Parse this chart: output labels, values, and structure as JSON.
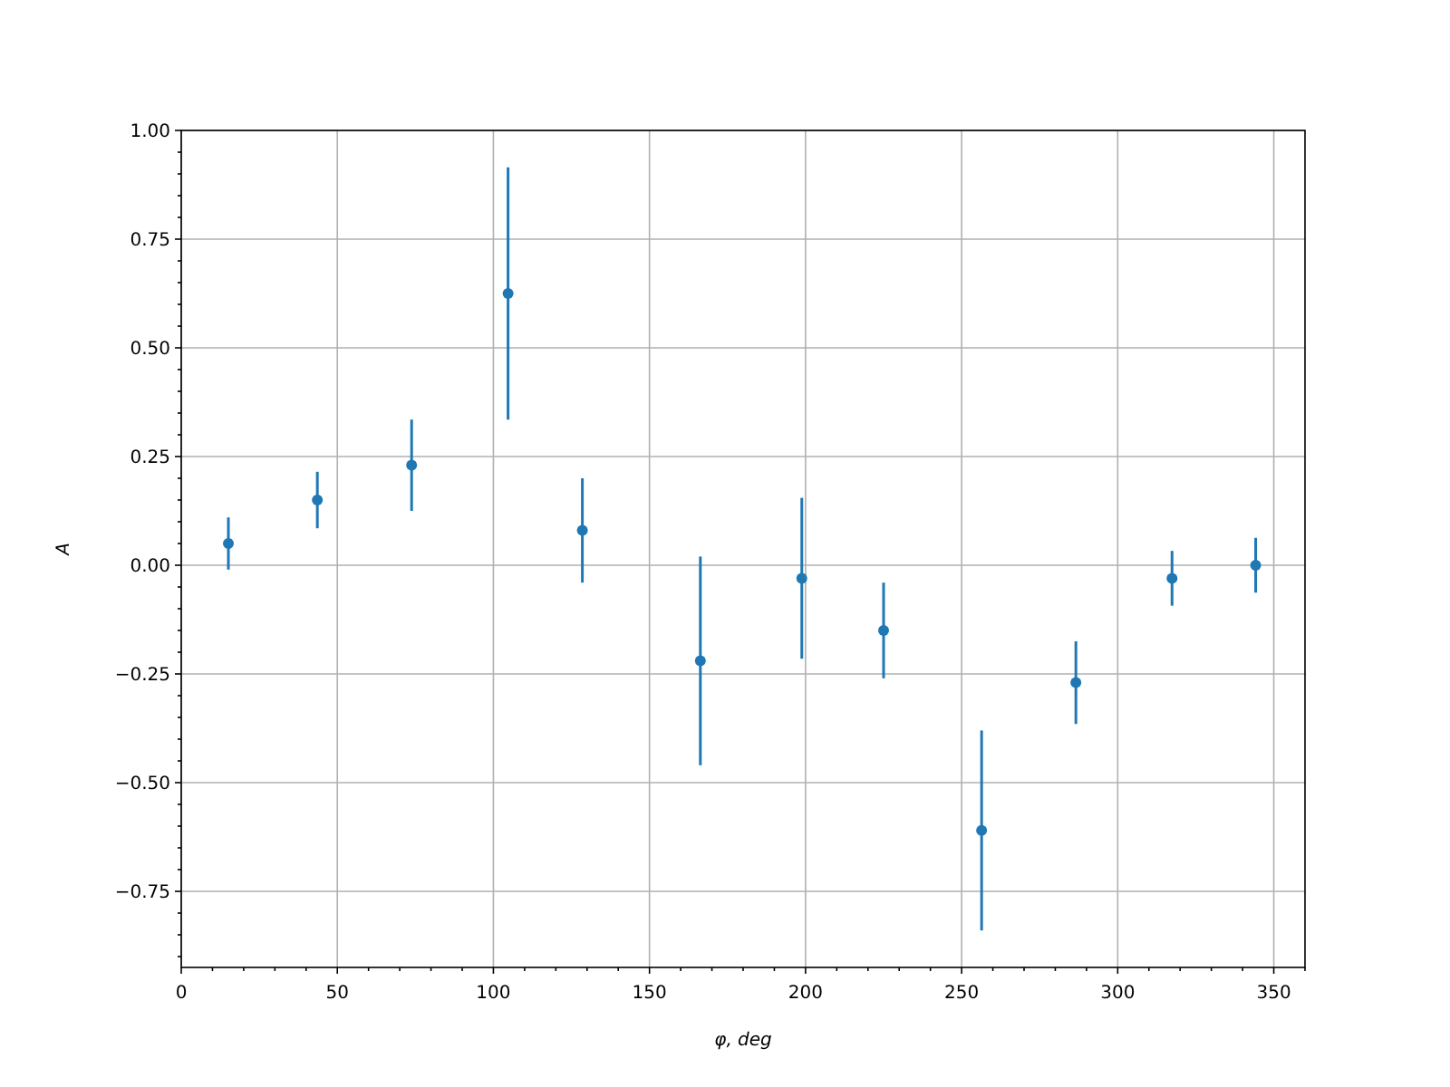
{
  "chart_data": {
    "type": "scatter",
    "xlabel": "φ, deg",
    "ylabel": "A",
    "x": [
      15.1,
      43.6,
      73.8,
      104.7,
      128.5,
      166.3,
      198.8,
      225,
      256.4,
      286.6,
      317.4,
      344.2
    ],
    "series": [
      {
        "color": "#1f77b4",
        "values": [
          0.05,
          0.15,
          0.23,
          0.625,
          0.08,
          -0.22,
          -0.03,
          -0.15,
          -0.61,
          -0.27,
          -0.03,
          0.0
        ],
        "errors": [
          0.06,
          0.065,
          0.105,
          0.29,
          0.12,
          0.24,
          0.185,
          0.11,
          0.23,
          0.095,
          0.063,
          0.063
        ]
      }
    ],
    "marker": "circle",
    "xlim": [
      0,
      360
    ],
    "ylim": [
      -0.925,
      1.0
    ],
    "xticks": [
      0,
      {
        "value": 10,
        "label": null
      },
      {
        "value": 20,
        "label": null
      },
      {
        "value": 30,
        "label": null
      },
      {
        "value": 40,
        "label": null
      },
      50,
      {
        "value": 60,
        "label": null
      },
      {
        "value": 70,
        "label": null
      },
      {
        "value": 80,
        "label": null
      },
      {
        "value": 90,
        "label": null
      },
      100,
      {
        "value": 110,
        "label": null
      },
      {
        "value": 120,
        "label": null
      },
      {
        "value": 130,
        "label": null
      },
      {
        "value": 140,
        "label": null
      },
      150,
      {
        "value": 160,
        "label": null
      },
      {
        "value": 170,
        "label": null
      },
      {
        "value": 180,
        "label": null
      },
      {
        "value": 190,
        "label": null
      },
      200,
      {
        "value": 210,
        "label": null
      },
      {
        "value": 220,
        "label": null
      },
      {
        "value": 230,
        "label": null
      },
      {
        "value": 240,
        "label": null
      },
      250,
      {
        "value": 260,
        "label": null
      },
      {
        "value": 270,
        "label": null
      },
      {
        "value": 280,
        "label": null
      },
      {
        "value": 290,
        "label": null
      },
      300,
      {
        "value": 310,
        "label": null
      },
      {
        "value": 320,
        "label": null
      },
      {
        "value": 330,
        "label": null
      },
      {
        "value": 340,
        "label": null
      },
      350,
      {
        "value": 360,
        "label": null
      }
    ],
    "yticks": [
      {
        "value": -0.9,
        "label": null
      },
      {
        "value": -0.85,
        "label": null
      },
      {
        "value": -0.8,
        "label": null
      },
      {
        "value": -0.75,
        "label": "−0.75"
      },
      {
        "value": -0.7,
        "label": null
      },
      {
        "value": -0.65,
        "label": null
      },
      {
        "value": -0.6,
        "label": null
      },
      {
        "value": -0.55,
        "label": null
      },
      {
        "value": -0.5,
        "label": "−0.50"
      },
      {
        "value": -0.45,
        "label": null
      },
      {
        "value": -0.4,
        "label": null
      },
      {
        "value": -0.35,
        "label": null
      },
      {
        "value": -0.3,
        "label": null
      },
      {
        "value": -0.25,
        "label": "−0.25"
      },
      {
        "value": -0.2,
        "label": null
      },
      {
        "value": -0.15,
        "label": null
      },
      {
        "value": -0.1,
        "label": null
      },
      {
        "value": -0.05,
        "label": null
      },
      {
        "value": 0,
        "label": "0.00"
      },
      {
        "value": 0.05,
        "label": null
      },
      {
        "value": 0.1,
        "label": null
      },
      {
        "value": 0.15,
        "label": null
      },
      {
        "value": 0.2,
        "label": null
      },
      {
        "value": 0.25,
        "label": "0.25"
      },
      {
        "value": 0.3,
        "label": null
      },
      {
        "value": 0.35,
        "label": null
      },
      {
        "value": 0.4,
        "label": null
      },
      {
        "value": 0.45,
        "label": null
      },
      {
        "value": 0.5,
        "label": "0.50"
      },
      {
        "value": 0.55,
        "label": null
      },
      {
        "value": 0.6,
        "label": null
      },
      {
        "value": 0.65,
        "label": null
      },
      {
        "value": 0.7,
        "label": null
      },
      {
        "value": 0.75,
        "label": "0.75"
      },
      {
        "value": 0.8,
        "label": null
      },
      {
        "value": 0.85,
        "label": null
      },
      {
        "value": 0.9,
        "label": null
      },
      {
        "value": 0.95,
        "label": null
      },
      {
        "value": 1.0,
        "label": "1.00"
      }
    ],
    "grid": true
  }
}
